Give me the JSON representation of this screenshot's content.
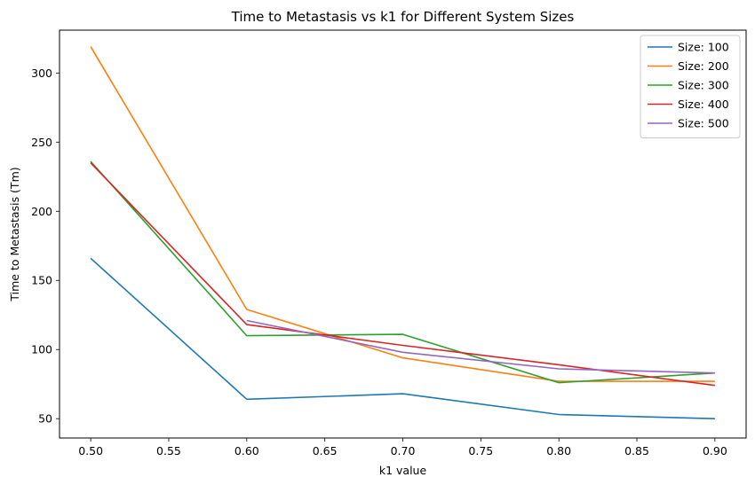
{
  "chart_data": {
    "type": "line",
    "title": "Time to Metastasis vs k1 for Different System Sizes",
    "xlabel": "k1 value",
    "ylabel": "Time to Metastasis (Tm)",
    "x": [
      0.5,
      0.6,
      0.7,
      0.8,
      0.9
    ],
    "xlim": [
      0.48,
      0.92
    ],
    "ylim": [
      36,
      331
    ],
    "xticks": [
      0.5,
      0.55,
      0.6,
      0.65,
      0.7,
      0.75,
      0.8,
      0.85,
      0.9
    ],
    "xtick_labels": [
      "0.50",
      "0.55",
      "0.60",
      "0.65",
      "0.70",
      "0.75",
      "0.80",
      "0.85",
      "0.90"
    ],
    "yticks": [
      50,
      100,
      150,
      200,
      250,
      300
    ],
    "ytick_labels": [
      "50",
      "100",
      "150",
      "200",
      "250",
      "300"
    ],
    "grid": false,
    "legend_position": "top-right",
    "series": [
      {
        "name": "Size: 100",
        "color": "#1f77b4",
        "values": [
          166,
          64,
          68,
          53,
          50
        ]
      },
      {
        "name": "Size: 200",
        "color": "#ff7f0e",
        "values": [
          319,
          129,
          94,
          77,
          77
        ]
      },
      {
        "name": "Size: 300",
        "color": "#2ca02c",
        "values": [
          236,
          110,
          111,
          76,
          83
        ]
      },
      {
        "name": "Size: 400",
        "color": "#d62728",
        "values": [
          235,
          118,
          103,
          89,
          74
        ]
      },
      {
        "name": "Size: 500",
        "color": "#9467bd",
        "values": [
          null,
          121,
          98,
          86,
          83
        ]
      }
    ]
  }
}
